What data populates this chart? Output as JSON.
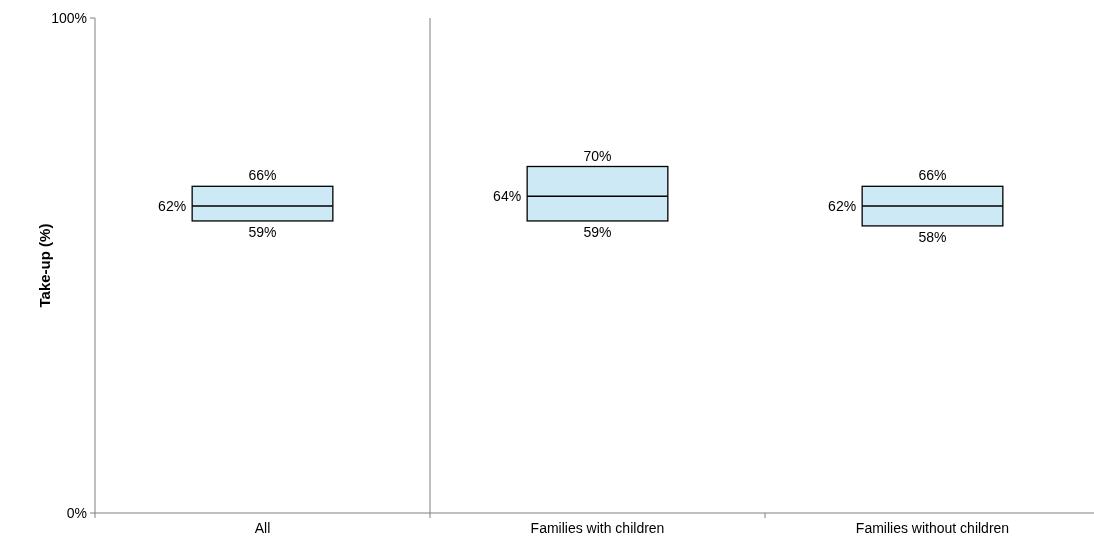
{
  "chart_data": {
    "type": "box",
    "ylabel": "Take-up (%)",
    "categories": [
      "All",
      "Families with children",
      "Families without children"
    ],
    "series": [
      {
        "color": "#cde9f5",
        "boxes": [
          {
            "low": 59,
            "q1": 59,
            "median": 62,
            "q3": 66,
            "high": 66
          },
          {
            "low": 59,
            "q1": 59,
            "median": 64,
            "q3": 70,
            "high": 70
          },
          {
            "low": 58,
            "q1": 58,
            "median": 62,
            "q3": 66,
            "high": 66
          }
        ]
      }
    ],
    "ylim": [
      0,
      100
    ],
    "yticks": [
      {
        "value": 0,
        "label": "0%"
      },
      {
        "value": 100,
        "label": "100%"
      }
    ],
    "grid": false,
    "annotations": [
      {
        "text": "66%",
        "x": "All",
        "y": 66
      },
      "62%",
      {
        "text": "59%",
        "x": "All",
        "y": 59
      },
      {
        "text": "70%",
        "x": "Families with children",
        "y": 70
      },
      "64%",
      {
        "text": "59%",
        "x": "Families with children",
        "y": 59
      },
      {
        "text": "66%",
        "x": "Families without children",
        "y": 66
      },
      "62%",
      {
        "text": "58%",
        "x": "Families without children",
        "y": 58
      }
    ]
  }
}
